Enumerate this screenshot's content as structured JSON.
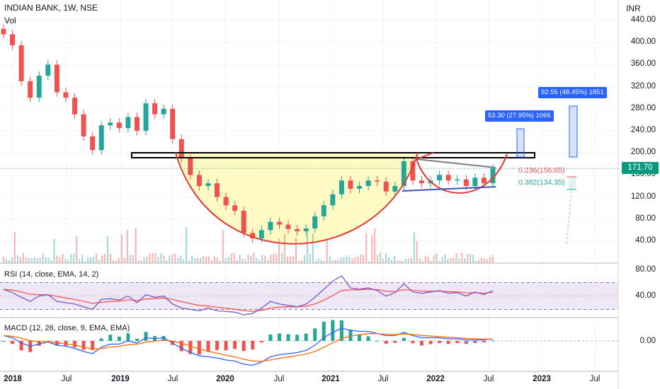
{
  "header": {
    "symbol": "INDIAN BANK, 1W, NSE",
    "volume_label": "Vol",
    "currency": "INR"
  },
  "price_axis": {
    "ticks": [
      "440.00",
      "400.00",
      "360.00",
      "320.00",
      "280.00",
      "240.00",
      "200.00",
      "160.00",
      "120.00",
      "80.00",
      "40.00"
    ]
  },
  "last_price": "171.70",
  "rsi": {
    "label": "RSI (14, close, EMA, 14, 2)",
    "ticks": [
      "80.00",
      "40.00"
    ]
  },
  "macd": {
    "label": "MACD (12, 26, close, 9, EMA, EMA)",
    "ticks": [
      "0.00"
    ]
  },
  "time_axis": {
    "labels": [
      {
        "text": "2018",
        "bold": true
      },
      {
        "text": "Jul",
        "bold": false
      },
      {
        "text": "2019",
        "bold": true
      },
      {
        "text": "Jul",
        "bold": false
      },
      {
        "text": "2020",
        "bold": true
      },
      {
        "text": "Jul",
        "bold": false
      },
      {
        "text": "2021",
        "bold": true
      },
      {
        "text": "Jul",
        "bold": false
      },
      {
        "text": "2022",
        "bold": true
      },
      {
        "text": "Jul",
        "bold": false
      },
      {
        "text": "2023",
        "bold": true
      },
      {
        "text": "Jul",
        "bold": false
      }
    ]
  },
  "annotations": {
    "measure_1": "53.30 (27.95%) 1066",
    "measure_2": "92.55 (48.45%) 1851",
    "fib_1": "0.236(156.65)",
    "fib_2": "0.382(134.35)"
  },
  "colors": {
    "up": "#26a69a",
    "down": "#ef5350",
    "cup": "#e53935",
    "cup_fill": "#fff9c4",
    "rsi_line": "#7e57c2",
    "rsi_ma": "#ff5252",
    "rsi_band": "#ede7f6",
    "macd_line": "#2962ff",
    "signal_line": "#ff6d00",
    "accent": "#2962ff",
    "last_price": "#089981"
  },
  "chart_data": {
    "type": "candlestick",
    "title": "INDIAN BANK, 1W, NSE",
    "x_unit": "weeks",
    "x": [
      "2017-11",
      "2018-01",
      "2018-02",
      "2018-03",
      "2018-04",
      "2018-05",
      "2018-06",
      "2018-07",
      "2018-08",
      "2018-09",
      "2018-10",
      "2018-11",
      "2018-12",
      "2019-01",
      "2019-02",
      "2019-03",
      "2019-04",
      "2019-05",
      "2019-06",
      "2019-07",
      "2019-08",
      "2019-09",
      "2019-10",
      "2019-11",
      "2019-12",
      "2020-01",
      "2020-02",
      "2020-03",
      "2020-04",
      "2020-05",
      "2020-06",
      "2020-07",
      "2020-08",
      "2020-09",
      "2020-10",
      "2020-11",
      "2020-12",
      "2021-01",
      "2021-02",
      "2021-03",
      "2021-04",
      "2021-05",
      "2021-06",
      "2021-07",
      "2021-08",
      "2021-09",
      "2021-10",
      "2021-11",
      "2021-12",
      "2022-01",
      "2022-02",
      "2022-03",
      "2022-04",
      "2022-05",
      "2022-06",
      "2022-07"
    ],
    "close": [
      415,
      395,
      330,
      300,
      340,
      360,
      310,
      300,
      270,
      230,
      205,
      250,
      255,
      245,
      265,
      240,
      290,
      270,
      280,
      225,
      190,
      160,
      140,
      145,
      120,
      105,
      95,
      55,
      45,
      60,
      75,
      70,
      62,
      58,
      63,
      85,
      105,
      125,
      150,
      135,
      140,
      150,
      148,
      130,
      140,
      185,
      150,
      145,
      150,
      160,
      150,
      152,
      140,
      155,
      145,
      172
    ],
    "ylabel": "INR",
    "ylim": [
      0,
      450
    ],
    "last_price": 171.7,
    "overlays": {
      "resistance_zone": [
        193,
        200
      ],
      "fib_levels": [
        {
          "ratio": 0.236,
          "value": 156.65
        },
        {
          "ratio": 0.382,
          "value": 134.35
        }
      ],
      "measured_moves": [
        {
          "points": 53.3,
          "percent": 27.95,
          "bars": 1066
        },
        {
          "points": 92.55,
          "percent": 48.45,
          "bars": 1851
        }
      ]
    },
    "rsi": {
      "ylim": [
        20,
        90
      ],
      "bands": [
        30,
        70
      ],
      "values": [
        60,
        55,
        48,
        42,
        50,
        52,
        42,
        40,
        38,
        34,
        30,
        45,
        46,
        44,
        50,
        40,
        52,
        48,
        50,
        38,
        32,
        30,
        28,
        32,
        28,
        27,
        26,
        22,
        24,
        32,
        42,
        38,
        36,
        34,
        38,
        48,
        60,
        72,
        80,
        62,
        60,
        62,
        58,
        50,
        55,
        68,
        56,
        54,
        56,
        58,
        54,
        55,
        50,
        56,
        52,
        58
      ]
    },
    "macd": {
      "zero": 0,
      "values": [
        10,
        6,
        -4,
        -10,
        -6,
        -2,
        -8,
        -10,
        -14,
        -20,
        -24,
        -12,
        -6,
        -6,
        0,
        -4,
        6,
        4,
        6,
        -4,
        -14,
        -22,
        -28,
        -30,
        -32,
        -36,
        -38,
        -44,
        -46,
        -40,
        -30,
        -26,
        -24,
        -22,
        -18,
        -8,
        6,
        16,
        24,
        20,
        18,
        18,
        14,
        10,
        10,
        16,
        10,
        6,
        6,
        6,
        4,
        4,
        2,
        2,
        2,
        4
      ]
    }
  }
}
